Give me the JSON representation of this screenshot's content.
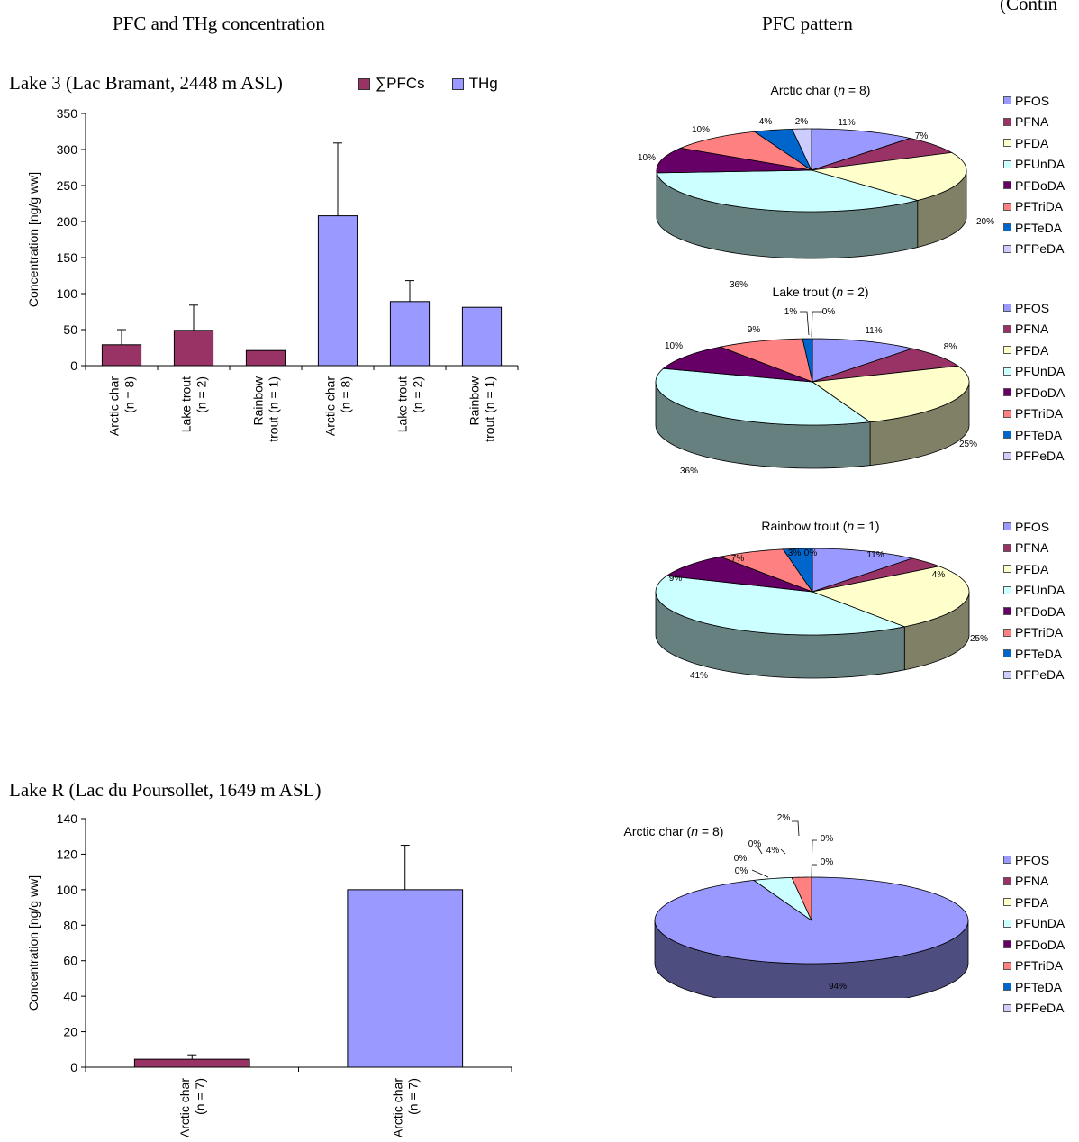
{
  "page": {
    "left_header": "PFC and THg concentration",
    "right_header": "PFC pattern",
    "continued": "(Contin"
  },
  "colors": {
    "pfc_sum": "#993366",
    "thg": "#9999ff",
    "PFOS": "#9999ff",
    "PFNA": "#993366",
    "PFDA": "#ffffcc",
    "PFUnDA": "#ccffff",
    "PFDoDA": "#660066",
    "PFTriDA": "#ff8080",
    "PFTeDA": "#0066cc",
    "PFPeDA": "#ccccff"
  },
  "legend_labels": [
    "PFOS",
    "PFNA",
    "PFDA",
    "PFUnDA",
    "PFDoDA",
    "PFTriDA",
    "PFTeDA",
    "PFPeDA"
  ],
  "chart_data": [
    {
      "type": "bar",
      "title": "Lake 3 (Lac Bramant, 2448 m ASL)",
      "legend": [
        "∑PFCs",
        "THg"
      ],
      "ylabel": "Concentration [ng/g ww]",
      "ylim": [
        0,
        350
      ],
      "yticks": [
        0,
        50,
        100,
        150,
        200,
        250,
        300,
        350
      ],
      "categories": [
        [
          "Arctic char",
          "(n = 8)"
        ],
        [
          "Lake trout",
          "(n = 2)"
        ],
        [
          "Rainbow",
          "trout (n = 1)"
        ],
        [
          "Arctic char",
          "(n = 8)"
        ],
        [
          "Lake trout",
          "(n = 2)"
        ],
        [
          "Rainbow",
          "trout (n = 1)"
        ]
      ],
      "series_of_bar": [
        "∑PFCs",
        "∑PFCs",
        "∑PFCs",
        "THg",
        "THg",
        "THg"
      ],
      "values": [
        29,
        49,
        21,
        208,
        89,
        81
      ],
      "errors": [
        21,
        35,
        null,
        101,
        29,
        null
      ]
    },
    {
      "type": "bar",
      "title": "Lake R (Lac du Poursollet, 1649 m ASL)",
      "ylabel": "Concentration [ng/g ww]",
      "ylim": [
        0,
        140
      ],
      "yticks": [
        0,
        20,
        40,
        60,
        80,
        100,
        120,
        140
      ],
      "categories": [
        [
          "Arctic char",
          "(n = 7)"
        ],
        [
          "Arctic char",
          "(n = 7)"
        ]
      ],
      "series_of_bar": [
        "∑PFCs",
        "THg"
      ],
      "values": [
        4.5,
        100
      ],
      "errors": [
        2.5,
        25
      ]
    },
    {
      "type": "pie",
      "title": "Arctic char (n = 8)",
      "title_species": "Arctic char",
      "title_n": "8",
      "labels": [
        "PFOS",
        "PFNA",
        "PFDA",
        "PFUnDA",
        "PFDoDA",
        "PFTriDA",
        "PFTeDA",
        "PFPeDA"
      ],
      "values": [
        11,
        7,
        20,
        36,
        10,
        10,
        4,
        2
      ],
      "value_labels": [
        "11%",
        "7%",
        "20%",
        "36%",
        "10%",
        "10%",
        "4%",
        "2%"
      ]
    },
    {
      "type": "pie",
      "title": "Lake trout (n = 2)",
      "title_species": "Lake trout",
      "title_n": "2",
      "labels": [
        "PFOS",
        "PFNA",
        "PFDA",
        "PFUnDA",
        "PFDoDA",
        "PFTriDA",
        "PFTeDA",
        "PFPeDA"
      ],
      "values": [
        11,
        8,
        25,
        36,
        10,
        9,
        1,
        0
      ],
      "value_labels": [
        "11%",
        "8%",
        "25%",
        "36%",
        "10%",
        "9%",
        "1%",
        "0%"
      ]
    },
    {
      "type": "pie",
      "title": "Rainbow trout (n = 1)",
      "title_species": "Rainbow trout",
      "title_n": "1",
      "labels": [
        "PFOS",
        "PFNA",
        "PFDA",
        "PFUnDA",
        "PFDoDA",
        "PFTriDA",
        "PFTeDA",
        "PFPeDA"
      ],
      "values": [
        11,
        4,
        25,
        41,
        9,
        7,
        3,
        0
      ],
      "value_labels": [
        "11%",
        "4%",
        "25%",
        "41%",
        "9%",
        "7%",
        "3%",
        "0%"
      ]
    },
    {
      "type": "pie",
      "title": "Arctic char (n = 8)",
      "title_species": "Arctic char",
      "title_n": "8",
      "labels": [
        "PFOS",
        "PFNA",
        "PFDA",
        "PFUnDA",
        "PFDoDA",
        "PFTriDA",
        "PFTeDA",
        "PFPeDA"
      ],
      "values": [
        94,
        0,
        0,
        4,
        0,
        2,
        0,
        0
      ],
      "value_labels": [
        "94%",
        "0%",
        "0%",
        "4%",
        "0%",
        "2%",
        "0%",
        "0%"
      ]
    }
  ]
}
